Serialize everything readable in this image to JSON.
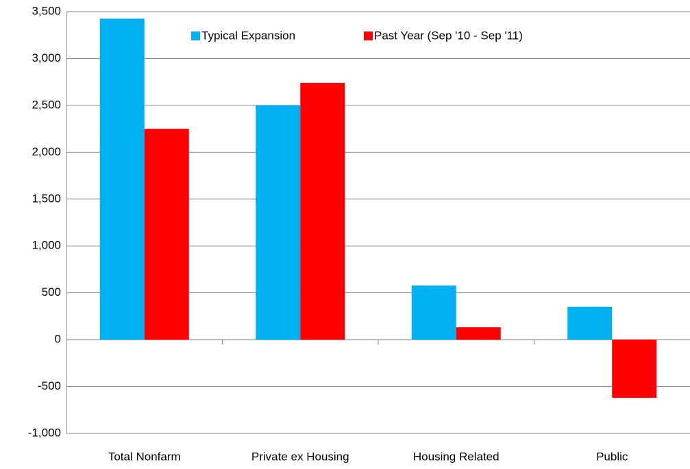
{
  "chart_data": {
    "type": "bar",
    "categories": [
      "Total Nonfarm",
      "Private ex Housing",
      "Housing Related",
      "Public"
    ],
    "series": [
      {
        "name": "Typical Expansion",
        "color": "#00b0f0",
        "values": [
          3425,
          2500,
          578,
          352
        ]
      },
      {
        "name": "Past Year (Sep '10 - Sep '11)",
        "color": "#ff0000",
        "values": [
          2250,
          2740,
          132,
          -620
        ]
      }
    ],
    "ylim": [
      -1000,
      3500
    ],
    "yticks": [
      {
        "value": -1000,
        "label": "-1,000"
      },
      -500,
      0,
      500,
      {
        "value": 1000,
        "label": "1,000"
      },
      {
        "value": 1500,
        "label": "1,500"
      },
      {
        "value": 2000,
        "label": "2,000"
      },
      {
        "value": 2500,
        "label": "2,500"
      },
      {
        "value": 3000,
        "label": "3,000"
      },
      {
        "value": 3500,
        "label": "3,500"
      }
    ],
    "grid": true,
    "legend": "top"
  }
}
